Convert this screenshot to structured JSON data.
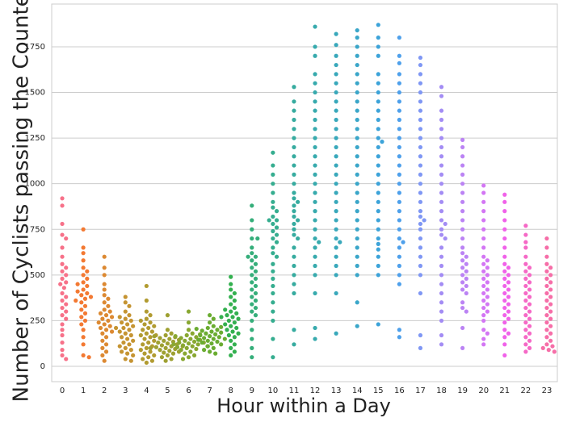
{
  "chart_data": {
    "type": "swarm",
    "x_label": "Hour within a Day",
    "y_label": "Number of Cyclists passing the Counter",
    "categories": [
      "0",
      "1",
      "2",
      "3",
      "4",
      "5",
      "6",
      "7",
      "8",
      "9",
      "10",
      "11",
      "12",
      "13",
      "14",
      "15",
      "16",
      "17",
      "18",
      "19",
      "20",
      "21",
      "22",
      "23"
    ],
    "colors": [
      "#f77189",
      "#f37932",
      "#dc8932",
      "#c59432",
      "#b19b31",
      "#9ea031",
      "#88a731",
      "#6aac31",
      "#33b04f",
      "#35ae7a",
      "#35ad8f",
      "#36ab9f",
      "#37aaad",
      "#38a8bb",
      "#3aa6c9",
      "#3ca3d9",
      "#4ea0eb",
      "#7f97f4",
      "#a38cf4",
      "#bb83f4",
      "#d376f4",
      "#f062e9",
      "#f569c6",
      "#f66ea8"
    ],
    "values": [
      [
        920,
        880,
        780,
        720,
        700,
        650,
        600,
        560,
        540,
        520,
        500,
        480,
        460,
        450,
        430,
        400,
        380,
        360,
        340,
        320,
        300,
        280,
        260,
        230,
        200,
        170,
        130,
        90,
        60,
        40
      ],
      [
        750,
        650,
        620,
        580,
        540,
        520,
        500,
        480,
        460,
        440,
        420,
        400,
        390,
        380,
        370,
        350,
        330,
        310,
        290,
        270,
        250,
        230,
        200,
        160,
        120,
        60,
        50,
        450,
        410,
        360
      ],
      [
        600,
        540,
        500,
        450,
        420,
        390,
        370,
        350,
        330,
        310,
        300,
        290,
        280,
        270,
        260,
        250,
        240,
        230,
        220,
        210,
        200,
        190,
        180,
        160,
        140,
        120,
        100,
        80,
        60,
        30
      ],
      [
        380,
        350,
        330,
        300,
        280,
        260,
        250,
        240,
        230,
        220,
        210,
        200,
        190,
        180,
        170,
        160,
        150,
        140,
        130,
        120,
        110,
        100,
        90,
        80,
        70,
        60,
        40,
        30,
        270,
        210
      ],
      [
        440,
        360,
        300,
        280,
        260,
        240,
        230,
        220,
        210,
        200,
        190,
        180,
        170,
        160,
        150,
        140,
        130,
        120,
        110,
        100,
        90,
        80,
        70,
        60,
        50,
        40,
        30,
        20,
        250,
        170
      ],
      [
        280,
        200,
        180,
        170,
        160,
        150,
        140,
        135,
        130,
        125,
        120,
        115,
        110,
        105,
        100,
        95,
        90,
        85,
        80,
        75,
        70,
        60,
        50,
        40,
        30,
        145,
        155,
        165,
        110,
        100
      ],
      [
        300,
        240,
        200,
        180,
        170,
        160,
        150,
        140,
        135,
        130,
        125,
        120,
        115,
        110,
        105,
        100,
        95,
        90,
        80,
        70,
        60,
        50,
        40,
        145,
        155,
        165,
        130,
        120,
        110,
        175
      ],
      [
        280,
        260,
        240,
        220,
        210,
        200,
        190,
        180,
        175,
        170,
        165,
        160,
        155,
        150,
        145,
        140,
        135,
        130,
        125,
        120,
        110,
        100,
        90,
        80,
        70,
        185,
        195,
        205,
        215,
        150
      ],
      [
        490,
        450,
        420,
        400,
        380,
        360,
        340,
        320,
        300,
        290,
        280,
        270,
        260,
        250,
        240,
        230,
        220,
        210,
        200,
        190,
        180,
        170,
        160,
        140,
        120,
        100,
        80,
        60,
        310,
        270
      ],
      [
        880,
        800,
        750,
        700,
        650,
        620,
        600,
        580,
        560,
        540,
        520,
        500,
        480,
        460,
        440,
        420,
        400,
        380,
        360,
        340,
        320,
        300,
        280,
        250,
        200,
        150,
        100,
        50,
        700,
        600
      ],
      [
        1170,
        1100,
        1050,
        1000,
        950,
        900,
        870,
        850,
        820,
        800,
        780,
        760,
        740,
        720,
        700,
        680,
        650,
        620,
        600,
        560,
        520,
        480,
        440,
        400,
        350,
        300,
        250,
        150,
        50,
        800
      ],
      [
        1530,
        1450,
        1400,
        1350,
        1300,
        1250,
        1200,
        1150,
        1100,
        1050,
        1000,
        950,
        920,
        900,
        880,
        850,
        820,
        800,
        780,
        750,
        720,
        700,
        650,
        600,
        550,
        500,
        450,
        400,
        200,
        120
      ],
      [
        1860,
        1750,
        1700,
        1600,
        1550,
        1500,
        1450,
        1400,
        1350,
        1300,
        1250,
        1200,
        1150,
        1100,
        1050,
        1000,
        950,
        900,
        850,
        800,
        750,
        700,
        680,
        650,
        600,
        550,
        500,
        400,
        210,
        150
      ],
      [
        1820,
        1760,
        1700,
        1650,
        1600,
        1550,
        1500,
        1450,
        1400,
        1350,
        1300,
        1250,
        1200,
        1150,
        1100,
        1050,
        1000,
        950,
        900,
        850,
        800,
        750,
        700,
        680,
        650,
        600,
        550,
        500,
        400,
        180
      ],
      [
        1840,
        1800,
        1750,
        1700,
        1650,
        1600,
        1550,
        1500,
        1450,
        1400,
        1350,
        1300,
        1250,
        1200,
        1150,
        1100,
        1050,
        1000,
        950,
        900,
        850,
        800,
        750,
        700,
        650,
        600,
        550,
        500,
        350,
        220
      ],
      [
        1870,
        1800,
        1750,
        1700,
        1600,
        1550,
        1500,
        1450,
        1400,
        1350,
        1300,
        1250,
        1230,
        1200,
        1150,
        1100,
        1050,
        1000,
        950,
        900,
        850,
        800,
        750,
        700,
        670,
        640,
        600,
        550,
        500,
        230
      ],
      [
        1800,
        1700,
        1660,
        1600,
        1550,
        1500,
        1450,
        1400,
        1350,
        1300,
        1250,
        1200,
        1150,
        1100,
        1050,
        1000,
        950,
        900,
        850,
        800,
        750,
        700,
        680,
        650,
        600,
        550,
        500,
        450,
        200,
        160
      ],
      [
        1690,
        1650,
        1600,
        1550,
        1500,
        1450,
        1400,
        1350,
        1300,
        1250,
        1200,
        1150,
        1100,
        1050,
        1000,
        950,
        900,
        850,
        820,
        800,
        780,
        750,
        700,
        650,
        600,
        550,
        500,
        400,
        170,
        100
      ],
      [
        1530,
        1480,
        1400,
        1350,
        1300,
        1250,
        1200,
        1150,
        1100,
        1050,
        1000,
        950,
        900,
        850,
        800,
        780,
        750,
        720,
        700,
        650,
        600,
        550,
        500,
        450,
        400,
        350,
        300,
        250,
        170,
        120
      ],
      [
        1240,
        1200,
        1150,
        1100,
        1050,
        1000,
        950,
        900,
        850,
        800,
        750,
        700,
        650,
        620,
        600,
        580,
        560,
        540,
        520,
        500,
        480,
        460,
        440,
        420,
        400,
        350,
        320,
        300,
        210,
        100
      ],
      [
        990,
        950,
        900,
        850,
        800,
        750,
        700,
        650,
        600,
        580,
        560,
        540,
        520,
        500,
        480,
        460,
        440,
        420,
        400,
        380,
        360,
        340,
        320,
        300,
        280,
        250,
        200,
        180,
        150,
        120
      ],
      [
        940,
        900,
        850,
        800,
        750,
        700,
        650,
        600,
        560,
        540,
        520,
        500,
        480,
        460,
        440,
        420,
        400,
        380,
        360,
        340,
        320,
        300,
        280,
        260,
        240,
        200,
        180,
        160,
        120,
        60
      ],
      [
        770,
        720,
        680,
        650,
        600,
        560,
        540,
        520,
        500,
        480,
        460,
        440,
        420,
        400,
        380,
        360,
        340,
        320,
        300,
        280,
        260,
        240,
        220,
        200,
        180,
        160,
        140,
        120,
        100,
        80
      ],
      [
        700,
        650,
        600,
        560,
        540,
        520,
        500,
        480,
        460,
        440,
        420,
        400,
        380,
        360,
        340,
        320,
        300,
        280,
        260,
        240,
        220,
        200,
        180,
        160,
        140,
        120,
        110,
        100,
        90,
        80
      ]
    ],
    "ylim": [
      -84,
      1984
    ],
    "yticks": [
      0,
      250,
      500,
      750,
      1000,
      1250,
      1500,
      1750
    ],
    "grid": true
  }
}
